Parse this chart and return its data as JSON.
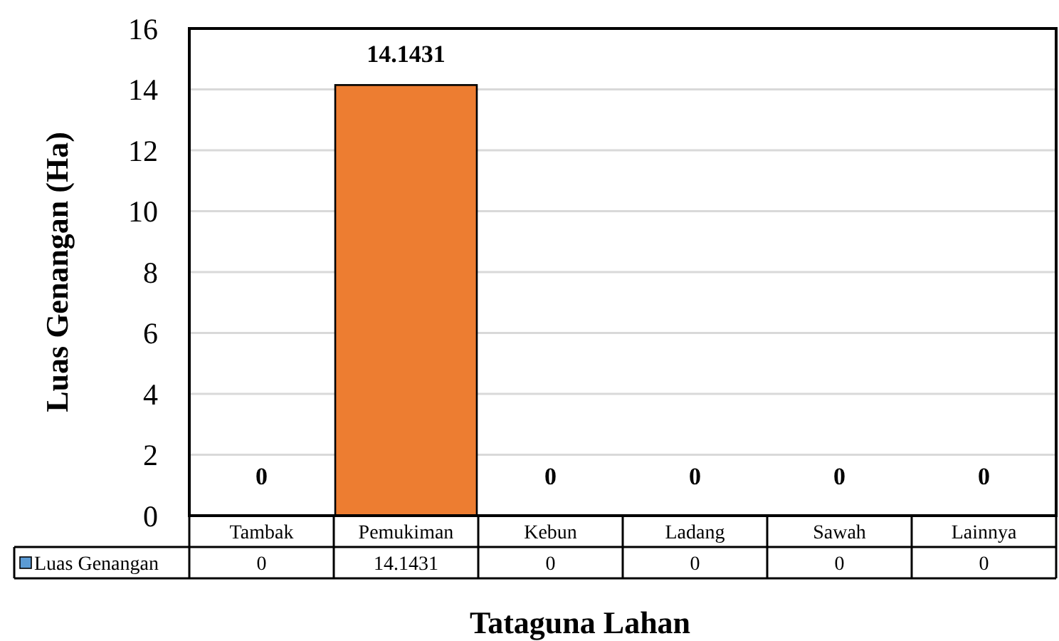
{
  "chart_data": {
    "type": "bar",
    "categories": [
      "Tambak",
      "Pemukiman",
      "Kebun",
      "Ladang",
      "Sawah",
      "Lainnya"
    ],
    "series": [
      {
        "name": "Luas Genangan",
        "color": "#5b9bd5",
        "colors": [
          "#5b9bd5",
          "#ed7d31",
          "#5b9bd5",
          "#5b9bd5",
          "#5b9bd5",
          "#5b9bd5"
        ],
        "values": [
          0,
          14.1431,
          0,
          0,
          0,
          0
        ],
        "value_labels": [
          "0",
          "14.1431",
          "0",
          "0",
          "0",
          "0"
        ]
      }
    ],
    "xlabel": "Tataguna Lahan",
    "ylabel": "Luas Genangan (Ha)",
    "ylim": [
      0,
      16
    ],
    "yticks": [
      0,
      2,
      4,
      6,
      8,
      10,
      12,
      14,
      16
    ],
    "annotations": [
      "0",
      "14.1431",
      "0",
      "0",
      "0",
      "0"
    ],
    "grid": "y",
    "data_labels": true,
    "legend": "bottom left"
  }
}
